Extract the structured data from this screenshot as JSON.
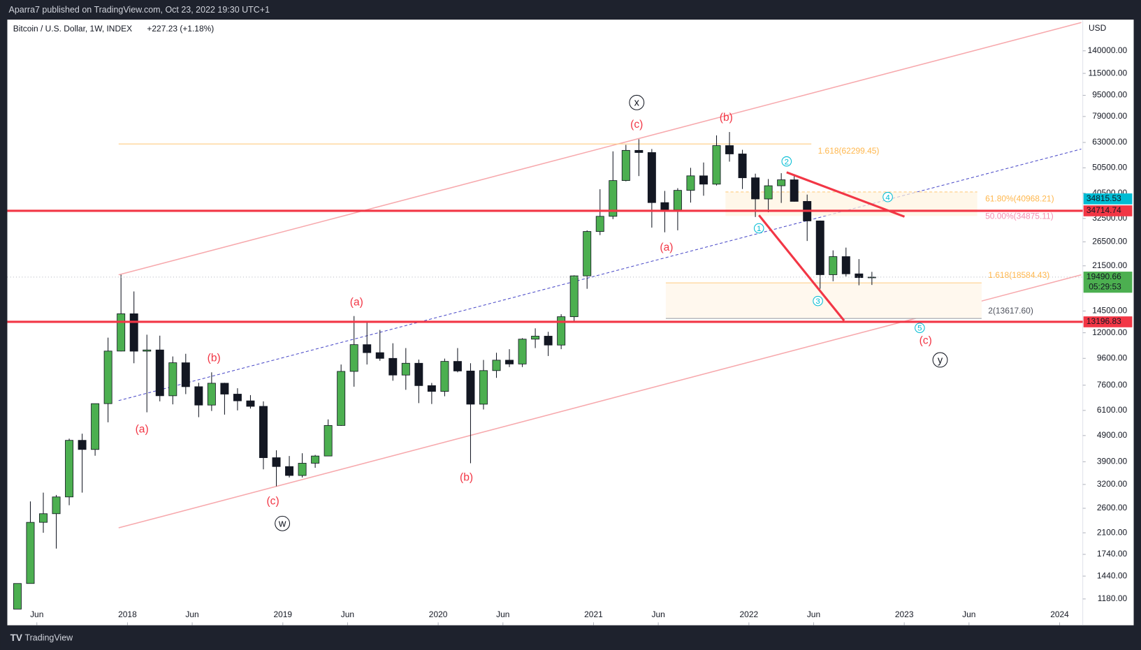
{
  "header": {
    "text": "Aparra7 published on TradingView.com, Oct 23, 2022 19:30 UTC+1"
  },
  "footer": {
    "brand": "TradingView"
  },
  "chart_data": {
    "type": "candlestick",
    "title": "Bitcoin / U.S. Dollar, 1W, INDEX",
    "change": "+227.23 (+1.18%)",
    "y_unit": "USD",
    "log_scale": true,
    "grid": false,
    "up_color": "#4caf50",
    "down_color": "#131722",
    "x": [
      "2017-04",
      "2017-05",
      "2017-06",
      "2017-07",
      "2017-08",
      "2017-09",
      "2017-10",
      "2017-11",
      "2017-12",
      "2018-01",
      "2018-02",
      "2018-03",
      "2018-04",
      "2018-05",
      "2018-06",
      "2018-07",
      "2018-08",
      "2018-09",
      "2018-10",
      "2018-11",
      "2018-12",
      "2019-01",
      "2019-02",
      "2019-03",
      "2019-04",
      "2019-05",
      "2019-06",
      "2019-07",
      "2019-08",
      "2019-09",
      "2019-10",
      "2019-11",
      "2019-12",
      "2020-01",
      "2020-02",
      "2020-03",
      "2020-04",
      "2020-05",
      "2020-06",
      "2020-07",
      "2020-08",
      "2020-09",
      "2020-10",
      "2020-11",
      "2020-12",
      "2021-01",
      "2021-02",
      "2021-03",
      "2021-04",
      "2021-05",
      "2021-06",
      "2021-07",
      "2021-08",
      "2021-09",
      "2021-10",
      "2021-11",
      "2021-12",
      "2022-01",
      "2022-02",
      "2022-03",
      "2022-04",
      "2022-05",
      "2022-06",
      "2022-07",
      "2022-08",
      "2022-09",
      "2022-10"
    ],
    "open": [
      1080,
      1350,
      2300,
      2480,
      2870,
      4700,
      4340,
      6470,
      10230,
      14160,
      10220,
      10330,
      6930,
      9240,
      7500,
      6390,
      7730,
      7030,
      6630,
      6320,
      4040,
      3740,
      3460,
      3850,
      4100,
      5350,
      8570,
      10820,
      10090,
      9600,
      8300,
      9200,
      7570,
      7200,
      9350,
      8600,
      6440,
      8630,
      9450,
      9140,
      11350,
      11650,
      10780,
      13800,
      19700,
      29000,
      33100,
      45200,
      58800,
      57700,
      37300,
      35000,
      41500,
      47100,
      43800,
      61300,
      57000,
      46300,
      38500,
      43200,
      45500,
      37700,
      31800,
      19900,
      23300,
      20050,
      19400
    ],
    "high": [
      1350,
      2760,
      2980,
      2920,
      4770,
      4980,
      6470,
      11500,
      19900,
      17200,
      11800,
      11700,
      9760,
      9990,
      7760,
      8500,
      7760,
      7400,
      6970,
      6600,
      4310,
      4100,
      4200,
      4140,
      5640,
      9100,
      13880,
      13200,
      12300,
      10950,
      10500,
      9500,
      7750,
      9580,
      10500,
      9200,
      9470,
      10080,
      10400,
      11450,
      12470,
      12100,
      14100,
      19800,
      29300,
      41900,
      58300,
      61700,
      64800,
      59500,
      41300,
      42300,
      50500,
      52900,
      67000,
      69000,
      59100,
      48000,
      45800,
      48200,
      47400,
      40000,
      31900,
      24600,
      25200,
      22800,
      20400
    ],
    "low": [
      1080,
      1350,
      2100,
      1830,
      2670,
      2980,
      4110,
      5500,
      10200,
      9200,
      6000,
      6600,
      6430,
      7030,
      5750,
      6070,
      5880,
      6100,
      6200,
      3650,
      3150,
      3400,
      3400,
      3700,
      4100,
      5330,
      7500,
      9100,
      9400,
      7900,
      7300,
      6500,
      6450,
      6900,
      8500,
      3850,
      6150,
      8100,
      8900,
      8900,
      10500,
      9800,
      10400,
      13200,
      17600,
      28100,
      32300,
      44900,
      47000,
      30000,
      28800,
      29300,
      37300,
      39600,
      43300,
      53300,
      42000,
      32900,
      34300,
      37200,
      37600,
      26700,
      17600,
      18800,
      19600,
      18150,
      18200
    ],
    "close": [
      1350,
      2300,
      2480,
      2870,
      4700,
      4340,
      6470,
      10230,
      14160,
      10220,
      10330,
      6930,
      9240,
      7500,
      6390,
      7730,
      7030,
      6630,
      6320,
      4040,
      3740,
      3460,
      3850,
      4100,
      5350,
      8570,
      10820,
      10090,
      9600,
      8300,
      9200,
      7570,
      7200,
      9350,
      8600,
      6440,
      8630,
      9450,
      9140,
      11350,
      11650,
      10780,
      13800,
      19700,
      29000,
      33100,
      45200,
      58800,
      57700,
      37300,
      35000,
      41500,
      47100,
      43800,
      61300,
      57000,
      46300,
      38500,
      43200,
      45500,
      37700,
      31800,
      19900,
      23300,
      20050,
      19400,
      19490.66
    ],
    "xlim": [
      "2017-04",
      "2024-02"
    ],
    "xticks": [
      {
        "value": "2017-06",
        "label": "Jun"
      },
      {
        "value": "2018-01",
        "label": "2018"
      },
      {
        "value": "2018-06",
        "label": "Jun"
      },
      {
        "value": "2019-01",
        "label": "2019"
      },
      {
        "value": "2019-06",
        "label": "Jun"
      },
      {
        "value": "2020-01",
        "label": "2020"
      },
      {
        "value": "2020-06",
        "label": "Jun"
      },
      {
        "value": "2021-01",
        "label": "2021"
      },
      {
        "value": "2021-06",
        "label": "Jun"
      },
      {
        "value": "2022-01",
        "label": "2022"
      },
      {
        "value": "2022-06",
        "label": "Jun"
      },
      {
        "value": "2023-01",
        "label": "2023"
      },
      {
        "value": "2023-06",
        "label": "Jun"
      },
      {
        "value": "2024-01",
        "label": "2024"
      }
    ],
    "ylim": [
      938,
      183700
    ],
    "yticks": [
      {
        "value": 1180,
        "label": "1180.00"
      },
      {
        "value": 1440,
        "label": "1440.00"
      },
      {
        "value": 1740,
        "label": "1740.00"
      },
      {
        "value": 2100,
        "label": "2100.00"
      },
      {
        "value": 2600,
        "label": "2600.00"
      },
      {
        "value": 3200,
        "label": "3200.00"
      },
      {
        "value": 3900,
        "label": "3900.00"
      },
      {
        "value": 4900,
        "label": "4900.00"
      },
      {
        "value": 6100,
        "label": "6100.00"
      },
      {
        "value": 7600,
        "label": "7600.00"
      },
      {
        "value": 9600,
        "label": "9600.00"
      },
      {
        "value": 12000,
        "label": "12000.00"
      },
      {
        "value": 14500,
        "label": "14500.00"
      },
      {
        "value": 21500,
        "label": "21500.00"
      },
      {
        "value": 26500,
        "label": "26500.00"
      },
      {
        "value": 32500,
        "label": "32500.00"
      },
      {
        "value": 40500,
        "label": "40500.00"
      },
      {
        "value": 50500,
        "label": "50500.00"
      },
      {
        "value": 63000,
        "label": "63000.00"
      },
      {
        "value": 79000,
        "label": "79000.00"
      },
      {
        "value": 95000,
        "label": "95000.00"
      },
      {
        "value": 115000,
        "label": "115000.00"
      },
      {
        "value": 140000,
        "label": "140000.00"
      }
    ],
    "levels": [
      {
        "value": 34714.74,
        "color": "#f23645"
      },
      {
        "value": 13196.83,
        "color": "#f23645"
      }
    ],
    "price_tags": [
      {
        "value": 13196.83,
        "color": "#f23645"
      },
      {
        "value": 19490.66,
        "color": "#4caf50"
      },
      {
        "value": 34714.74,
        "color": "#f23645"
      },
      {
        "value": 34815.53,
        "color": "#00bcd4"
      }
    ],
    "countdown": "05:29:53",
    "annotations": {
      "waves": [
        "(c)",
        "(b)",
        "(a)",
        "(a)",
        "(b)",
        "(a)",
        "(c)",
        "(b)",
        "(c)"
      ],
      "circled": [
        "x",
        "w",
        "y"
      ],
      "impulse": [
        "1",
        "2",
        "3",
        "4",
        "5"
      ],
      "fib": [
        "1.618(62299.45)",
        "61.80%(40968.21)",
        "50.00%(34875.11)",
        "1.618(18584.43)",
        "2(13617.60)"
      ]
    }
  }
}
